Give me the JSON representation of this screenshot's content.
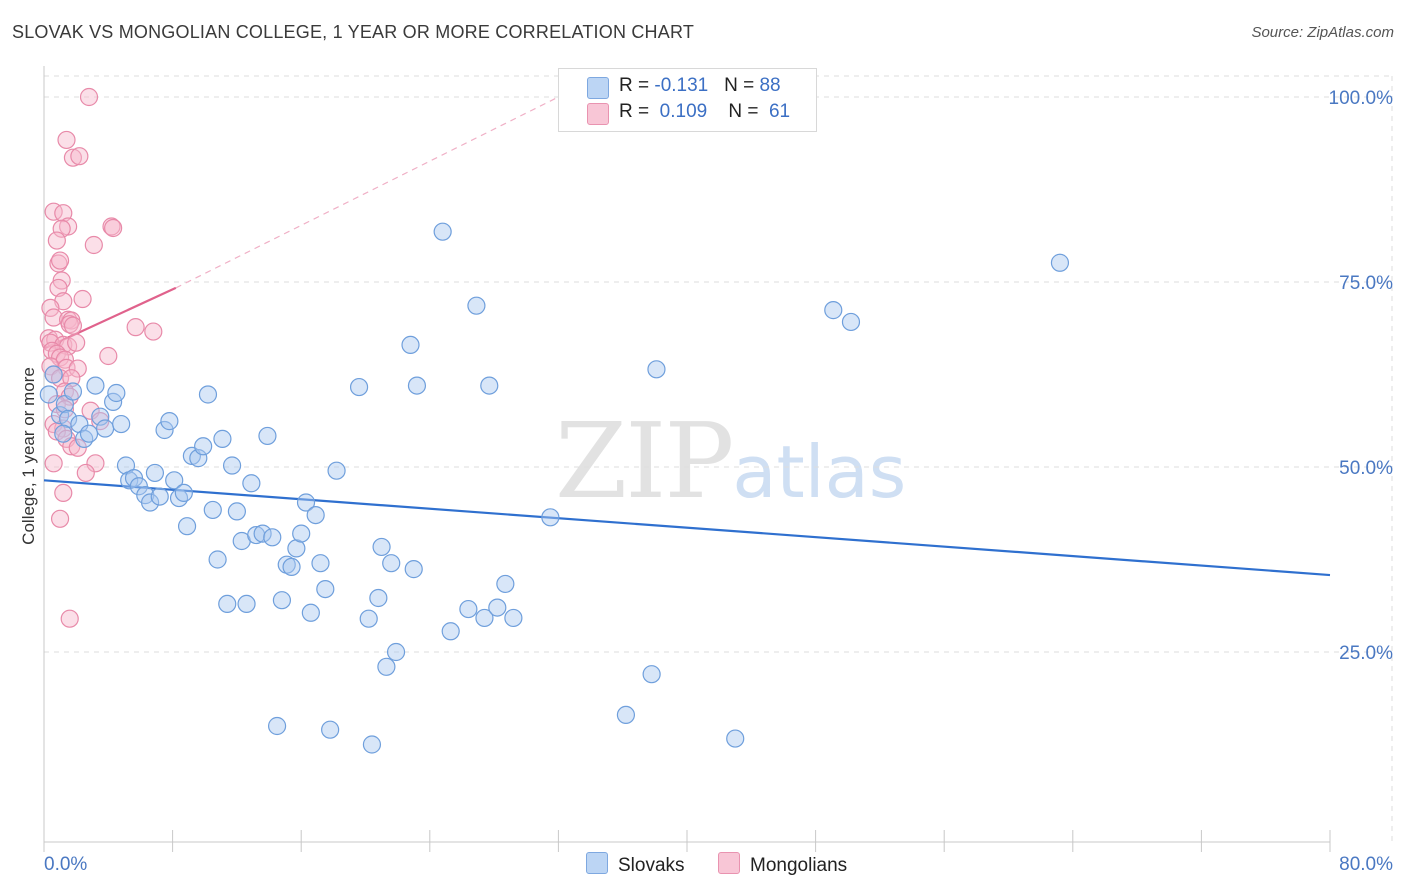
{
  "title": "SLOVAK VS MONGOLIAN COLLEGE, 1 YEAR OR MORE CORRELATION CHART",
  "source": "Source: ZipAtlas.com",
  "watermark": {
    "zip": "ZIP",
    "atlas": "atlas"
  },
  "colors": {
    "slovaks_fill": "#a8c8f0",
    "slovaks_stroke": "#6f9fdc",
    "slovaks_line": "#2f70cf",
    "mongolians_fill": "#f6b8cc",
    "mongolians_stroke": "#e88aa9",
    "mongolians_line": "#e0628c",
    "grid": "#dddddd",
    "tick_text": "#4a78c2"
  },
  "legend": {
    "slovaks": {
      "r_label": "R = ",
      "r_value": "-0.131",
      "n_label": "N = ",
      "n_value": "88"
    },
    "mongolians": {
      "r_label": "R = ",
      "r_value": "0.109",
      "n_label": "N = ",
      "n_value": "61"
    }
  },
  "bottom_legend": {
    "slovaks": "Slovaks",
    "mongolians": "Mongolians"
  },
  "chart_data": {
    "type": "scatter",
    "title": "SLOVAK VS MONGOLIAN COLLEGE, 1 YEAR OR MORE CORRELATION CHART",
    "xlabel": "",
    "ylabel": "College, 1 year or more",
    "xlim": [
      0,
      80
    ],
    "ylim": [
      0,
      103
    ],
    "x_tick_labels": {
      "min": "0.0%",
      "max": "80.0%"
    },
    "y_ticks": [
      25,
      50,
      75,
      100
    ],
    "y_tick_labels": [
      "25.0%",
      "50.0%",
      "75.0%",
      "100.0%"
    ],
    "series": [
      {
        "name": "Slovaks",
        "r": -0.131,
        "n": 88,
        "trend": {
          "x": [
            0,
            80
          ],
          "y": [
            48.2,
            35.4
          ]
        },
        "points": [
          [
            0.3,
            59.8
          ],
          [
            0.6,
            62.5
          ],
          [
            1.0,
            57.0
          ],
          [
            1.3,
            58.5
          ],
          [
            1.5,
            56.5
          ],
          [
            1.8,
            60.2
          ],
          [
            2.2,
            55.8
          ],
          [
            2.5,
            53.8
          ],
          [
            2.8,
            54.5
          ],
          [
            3.2,
            61.0
          ],
          [
            3.5,
            56.8
          ],
          [
            3.8,
            55.2
          ],
          [
            4.3,
            58.8
          ],
          [
            4.5,
            60.0
          ],
          [
            4.8,
            55.8
          ],
          [
            5.1,
            50.2
          ],
          [
            5.3,
            48.2
          ],
          [
            5.6,
            48.5
          ],
          [
            5.9,
            47.4
          ],
          [
            6.3,
            46.2
          ],
          [
            6.6,
            45.2
          ],
          [
            6.9,
            49.2
          ],
          [
            7.2,
            46.0
          ],
          [
            7.5,
            55.0
          ],
          [
            7.8,
            56.2
          ],
          [
            8.1,
            48.2
          ],
          [
            8.4,
            45.8
          ],
          [
            8.7,
            46.5
          ],
          [
            8.9,
            42.0
          ],
          [
            9.2,
            51.5
          ],
          [
            9.6,
            51.2
          ],
          [
            9.9,
            52.8
          ],
          [
            10.2,
            59.8
          ],
          [
            10.5,
            44.2
          ],
          [
            10.8,
            37.5
          ],
          [
            11.1,
            53.8
          ],
          [
            11.4,
            31.5
          ],
          [
            11.7,
            50.2
          ],
          [
            12.0,
            44.0
          ],
          [
            12.3,
            40.0
          ],
          [
            12.6,
            31.5
          ],
          [
            12.9,
            47.8
          ],
          [
            13.2,
            40.8
          ],
          [
            13.6,
            41.0
          ],
          [
            13.9,
            54.2
          ],
          [
            14.2,
            40.5
          ],
          [
            14.5,
            15.0
          ],
          [
            14.8,
            32.0
          ],
          [
            15.1,
            36.8
          ],
          [
            15.4,
            36.5
          ],
          [
            15.7,
            39.0
          ],
          [
            16.0,
            41.0
          ],
          [
            16.3,
            45.2
          ],
          [
            16.6,
            30.3
          ],
          [
            16.9,
            43.5
          ],
          [
            17.2,
            37.0
          ],
          [
            17.5,
            33.5
          ],
          [
            17.8,
            14.5
          ],
          [
            18.2,
            49.5
          ],
          [
            19.6,
            60.8
          ],
          [
            20.2,
            29.5
          ],
          [
            20.4,
            12.5
          ],
          [
            20.8,
            32.3
          ],
          [
            21.0,
            39.2
          ],
          [
            21.3,
            23.0
          ],
          [
            21.6,
            37.0
          ],
          [
            21.9,
            25.0
          ],
          [
            22.8,
            66.5
          ],
          [
            23.0,
            36.2
          ],
          [
            23.2,
            61.0
          ],
          [
            24.8,
            81.8
          ],
          [
            25.3,
            27.8
          ],
          [
            26.4,
            30.8
          ],
          [
            26.9,
            71.8
          ],
          [
            27.4,
            29.6
          ],
          [
            27.7,
            61.0
          ],
          [
            28.2,
            31.0
          ],
          [
            28.7,
            34.2
          ],
          [
            29.2,
            29.6
          ],
          [
            31.5,
            43.2
          ],
          [
            36.2,
            16.5
          ],
          [
            37.8,
            22.0
          ],
          [
            38.1,
            63.2
          ],
          [
            43.0,
            13.3
          ],
          [
            49.1,
            71.2
          ],
          [
            50.2,
            69.6
          ],
          [
            63.2,
            77.6
          ],
          [
            1.2,
            54.5
          ]
        ]
      },
      {
        "name": "Mongolians",
        "r": 0.109,
        "n": 61,
        "trend": {
          "x": [
            0,
            8.2
          ],
          "y": [
            66.0,
            74.2
          ]
        },
        "trend_dashed": {
          "x": [
            8.2,
            32.0
          ],
          "y": [
            74.2,
            100.0
          ]
        },
        "points": [
          [
            2.8,
            100.0
          ],
          [
            1.4,
            94.2
          ],
          [
            1.8,
            91.8
          ],
          [
            2.2,
            92.0
          ],
          [
            0.6,
            84.5
          ],
          [
            1.2,
            84.3
          ],
          [
            1.5,
            82.5
          ],
          [
            1.1,
            82.2
          ],
          [
            4.2,
            82.5
          ],
          [
            4.3,
            82.3
          ],
          [
            0.8,
            80.6
          ],
          [
            3.1,
            80.0
          ],
          [
            0.9,
            77.5
          ],
          [
            1.0,
            77.9
          ],
          [
            1.1,
            75.2
          ],
          [
            0.9,
            74.2
          ],
          [
            1.2,
            72.4
          ],
          [
            2.4,
            72.7
          ],
          [
            0.4,
            71.5
          ],
          [
            0.6,
            70.2
          ],
          [
            1.5,
            69.9
          ],
          [
            1.7,
            69.8
          ],
          [
            1.6,
            69.3
          ],
          [
            1.8,
            69.1
          ],
          [
            5.7,
            68.9
          ],
          [
            6.8,
            68.3
          ],
          [
            0.3,
            67.4
          ],
          [
            0.7,
            67.2
          ],
          [
            0.4,
            66.8
          ],
          [
            1.2,
            66.5
          ],
          [
            1.5,
            66.3
          ],
          [
            2.0,
            66.8
          ],
          [
            0.5,
            65.7
          ],
          [
            0.8,
            65.3
          ],
          [
            1.0,
            64.8
          ],
          [
            1.3,
            64.5
          ],
          [
            4.0,
            65.0
          ],
          [
            0.4,
            63.6
          ],
          [
            1.4,
            63.4
          ],
          [
            2.1,
            63.3
          ],
          [
            0.6,
            62.5
          ],
          [
            1.0,
            62.0
          ],
          [
            1.7,
            62.0
          ],
          [
            1.3,
            60.2
          ],
          [
            1.6,
            59.5
          ],
          [
            0.8,
            58.5
          ],
          [
            1.3,
            57.8
          ],
          [
            2.9,
            57.6
          ],
          [
            3.5,
            56.2
          ],
          [
            0.6,
            55.8
          ],
          [
            1.2,
            55.2
          ],
          [
            0.8,
            54.8
          ],
          [
            1.4,
            53.8
          ],
          [
            1.7,
            52.8
          ],
          [
            2.1,
            52.6
          ],
          [
            0.6,
            50.5
          ],
          [
            3.2,
            50.5
          ],
          [
            2.6,
            49.2
          ],
          [
            1.2,
            46.5
          ],
          [
            1.0,
            43.0
          ],
          [
            1.6,
            29.5
          ]
        ]
      }
    ]
  }
}
